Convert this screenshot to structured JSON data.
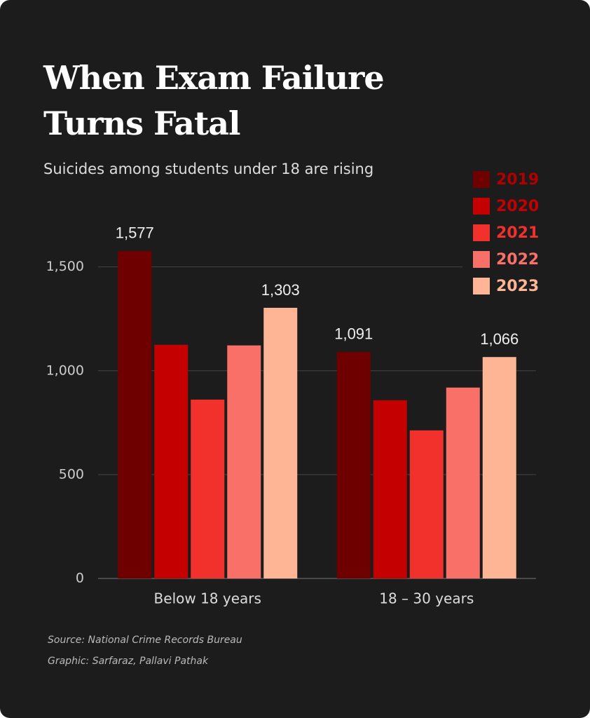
{
  "chart_data": {
    "type": "bar",
    "title_lines": [
      "When Exam Failure",
      "Turns Fatal"
    ],
    "subtitle": "Suicides among students under 18 are rising",
    "categories": [
      "Below 18 years",
      "18 – 30 years"
    ],
    "series": [
      {
        "name": "2019",
        "color": "#6e0000",
        "values": [
          1577,
          1091
        ],
        "value_labels": [
          "1,577",
          "1,091"
        ]
      },
      {
        "name": "2020",
        "color": "#c40000",
        "values": [
          1125,
          858
        ],
        "value_labels": [
          null,
          null
        ]
      },
      {
        "name": "2021",
        "color": "#f2302c",
        "values": [
          861,
          713
        ],
        "value_labels": [
          null,
          null
        ]
      },
      {
        "name": "2022",
        "color": "#f87068",
        "values": [
          1122,
          919
        ],
        "value_labels": [
          null,
          null
        ]
      },
      {
        "name": "2023",
        "color": "#fdb596",
        "values": [
          1303,
          1066
        ],
        "value_labels": [
          "1,303",
          "1,066"
        ]
      }
    ],
    "ylim": [
      0,
      1600
    ],
    "yticks": [
      0,
      500,
      {
        "value": 1000,
        "label": "1,000"
      },
      {
        "value": 1500,
        "label": "1,500"
      }
    ],
    "grid": true,
    "source": "Source: National Crime Records Bureau",
    "credit": "Graphic:  Sarfaraz, Pallavi Pathak"
  }
}
